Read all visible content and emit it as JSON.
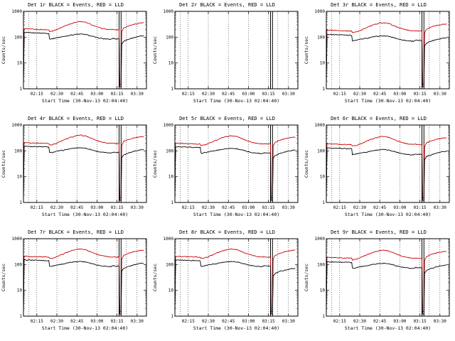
{
  "window": {
    "background": "#ffffff"
  },
  "colors": {
    "events": "#000000",
    "lld": "#cc0000",
    "axis": "#000000"
  },
  "chart_data": {
    "type": "line",
    "layout": "3x3-grid",
    "legend_note": "BLACK = Events, RED = LLD",
    "yscale": "log",
    "ylabel": "Counts/sec",
    "xlabel": "Start Time (30-Nov-13 02:04:40)",
    "ylim": [
      1,
      1000
    ],
    "ytick_values": [
      1000,
      100,
      10,
      1
    ],
    "ytick_labels": [
      "1000",
      "100",
      "10",
      "1"
    ],
    "xlim_minutes_after_0200": [
      5,
      97
    ],
    "xtick_minutes": [
      15,
      30,
      45,
      60,
      75,
      90
    ],
    "xtick_labels": [
      "02:15",
      "02:30",
      "02:45",
      "03:00",
      "03:15",
      "03:30"
    ],
    "dotted_guide_minutes": [
      9,
      15,
      30,
      45,
      60,
      75,
      82,
      90
    ],
    "solid_marker_minutes": [
      76.5,
      78
    ],
    "x_minutes": [
      5,
      5.5,
      10,
      15,
      20,
      24,
      24.5,
      27,
      30,
      35,
      40,
      45,
      48,
      52,
      56,
      60,
      64,
      68,
      70,
      72,
      74,
      76,
      76.5,
      77,
      78,
      78.5,
      80,
      84,
      88,
      92,
      95
    ],
    "panels": [
      {
        "det": "Det 1r",
        "title": "Det 1r BLACK = Events, RED = LLD",
        "lld": [
          1.3,
          210,
          205,
          200,
          196,
          192,
          170,
          176,
          200,
          260,
          330,
          390,
          400,
          370,
          300,
          250,
          218,
          200,
          196,
          200,
          192,
          196,
          190,
          1.5,
          1.5,
          160,
          230,
          280,
          320,
          350,
          360
        ],
        "events": [
          1,
          150,
          148,
          146,
          143,
          140,
          85,
          88,
          96,
          106,
          120,
          130,
          132,
          125,
          110,
          96,
          88,
          84,
          82,
          90,
          86,
          87,
          85,
          1.2,
          1.2,
          55,
          70,
          85,
          98,
          108,
          114
        ]
      },
      {
        "det": "Det 2r",
        "title": "Det 2r BLACK = Events, RED = LLD",
        "lld": [],
        "events": []
      },
      {
        "det": "Det 3r",
        "title": "Det 3r BLACK = Events, RED = LLD",
        "lld": [
          1.3,
          189,
          185,
          180,
          176,
          173,
          153,
          158,
          180,
          234,
          297,
          351,
          360,
          333,
          270,
          225,
          196,
          180,
          176,
          180,
          173,
          176,
          171,
          1.5,
          1.5,
          144,
          207,
          252,
          288,
          315,
          324
        ],
        "events": [
          1,
          128,
          126,
          124,
          122,
          119,
          72,
          75,
          82,
          90,
          102,
          111,
          112,
          106,
          94,
          82,
          75,
          71,
          70,
          77,
          73,
          74,
          72,
          1.2,
          1.2,
          47,
          60,
          72,
          83,
          92,
          97
        ]
      },
      {
        "det": "Det 4r",
        "title": "Det 4r BLACK = Events, RED = LLD",
        "lld": [
          1.3,
          210,
          205,
          200,
          196,
          192,
          170,
          176,
          200,
          260,
          330,
          390,
          400,
          370,
          300,
          250,
          218,
          200,
          196,
          200,
          192,
          196,
          190,
          1.5,
          1.5,
          160,
          230,
          280,
          320,
          350,
          360
        ],
        "events": [
          1,
          150,
          148,
          146,
          143,
          140,
          85,
          88,
          96,
          106,
          120,
          130,
          132,
          125,
          110,
          96,
          88,
          84,
          82,
          90,
          86,
          87,
          85,
          1.2,
          1.2,
          55,
          70,
          85,
          98,
          108,
          114
        ]
      },
      {
        "det": "Det 5r",
        "title": "Det 5r BLACK = Events, RED = LLD",
        "lld": [
          1.3,
          200,
          195,
          190,
          186,
          182,
          162,
          167,
          190,
          247,
          314,
          371,
          380,
          352,
          285,
          238,
          207,
          190,
          186,
          190,
          182,
          186,
          181,
          1.5,
          1.5,
          152,
          219,
          266,
          304,
          333,
          342
        ],
        "events": [
          1,
          143,
          141,
          139,
          136,
          133,
          81,
          84,
          91,
          101,
          114,
          124,
          125,
          119,
          105,
          91,
          84,
          80,
          78,
          86,
          82,
          83,
          81,
          1.2,
          1.2,
          52,
          67,
          81,
          93,
          103,
          108
        ]
      },
      {
        "det": "Det 6r",
        "title": "Det 6r BLACK = Events, RED = LLD",
        "lld": [
          1.3,
          189,
          185,
          180,
          176,
          173,
          153,
          158,
          180,
          234,
          297,
          351,
          360,
          333,
          270,
          225,
          196,
          180,
          176,
          180,
          173,
          176,
          171,
          1.5,
          1.5,
          144,
          207,
          252,
          288,
          315,
          324
        ],
        "events": [
          1,
          128,
          126,
          124,
          122,
          119,
          72,
          75,
          82,
          90,
          102,
          111,
          112,
          106,
          94,
          82,
          75,
          71,
          70,
          77,
          73,
          74,
          72,
          1.2,
          1.2,
          47,
          60,
          72,
          83,
          92,
          97
        ]
      },
      {
        "det": "Det 7r",
        "title": "Det 7r BLACK = Events, RED = LLD",
        "lld": [
          1.3,
          210,
          205,
          200,
          196,
          192,
          170,
          176,
          200,
          260,
          330,
          390,
          400,
          370,
          300,
          250,
          218,
          200,
          196,
          200,
          192,
          196,
          190,
          1.5,
          1.5,
          160,
          230,
          280,
          320,
          350,
          360
        ],
        "events": [
          1,
          150,
          148,
          146,
          143,
          140,
          85,
          88,
          96,
          106,
          120,
          130,
          132,
          125,
          110,
          96,
          88,
          84,
          82,
          90,
          86,
          87,
          85,
          1.2,
          1.2,
          55,
          70,
          85,
          98,
          108,
          114
        ]
      },
      {
        "det": "Det 8r",
        "title": "Det 8r BLACK = Events, RED = LLD",
        "lld": [
          1.3,
          210,
          205,
          200,
          196,
          192,
          170,
          176,
          200,
          260,
          330,
          390,
          400,
          370,
          300,
          250,
          218,
          200,
          196,
          200,
          192,
          196,
          190,
          1.5,
          1.5,
          160,
          230,
          280,
          320,
          350,
          360
        ],
        "events": [
          1,
          150,
          148,
          146,
          143,
          140,
          85,
          88,
          96,
          106,
          120,
          130,
          132,
          125,
          110,
          96,
          88,
          84,
          82,
          90,
          86,
          87,
          85,
          1.2,
          1.2,
          35,
          45,
          55,
          62,
          68,
          72
        ]
      },
      {
        "det": "Det 9r",
        "title": "Det 9r BLACK = Events, RED = LLD",
        "lld": [
          1.3,
          189,
          185,
          180,
          176,
          173,
          153,
          158,
          180,
          234,
          297,
          351,
          360,
          333,
          270,
          225,
          196,
          180,
          176,
          180,
          173,
          176,
          171,
          1.5,
          1.5,
          144,
          207,
          252,
          288,
          315,
          324
        ],
        "events": [
          1,
          128,
          126,
          124,
          122,
          119,
          72,
          75,
          82,
          90,
          102,
          111,
          112,
          106,
          94,
          82,
          75,
          71,
          70,
          77,
          73,
          74,
          72,
          1.2,
          1.2,
          47,
          60,
          72,
          83,
          92,
          97
        ]
      }
    ]
  }
}
